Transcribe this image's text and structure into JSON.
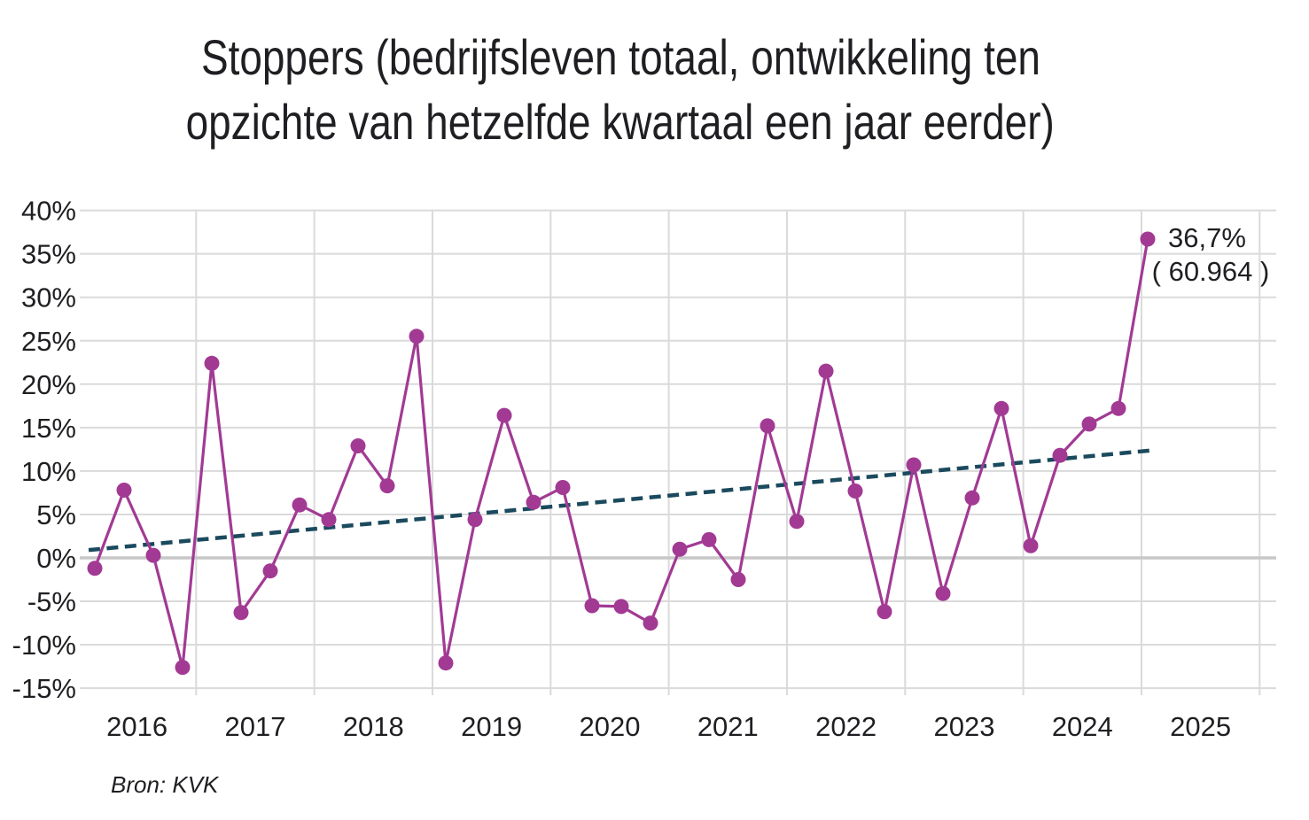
{
  "title": {
    "line1": "Stoppers (bedrijfsleven totaal, ontwikkeling ten",
    "line2": "opzichte van hetzelfde kwartaal een jaar eerder)"
  },
  "annotation": {
    "percent": "36,7%",
    "absolute": "( 60.964 )"
  },
  "source": {
    "label": "Bron: KVK"
  },
  "colors": {
    "series": "#A23A94",
    "trend": "#1B4A5E",
    "grid": "#DADADA",
    "zero_line": "#C7C7C7",
    "text": "#1F1F23",
    "background": "#FFFFFF"
  },
  "chart_data": {
    "type": "line",
    "title": "Stoppers (bedrijfsleven totaal, ontwikkeling ten opzichte van hetzelfde kwartaal een jaar eerder)",
    "source": "Bron: KVK",
    "grid": true,
    "legend_position": "none",
    "ylim": [
      -15,
      40
    ],
    "yticks_percent": [
      40,
      35,
      30,
      25,
      20,
      15,
      10,
      5,
      0,
      -5,
      -10,
      -15
    ],
    "ytick_labels": [
      "40%",
      "35%",
      "30%",
      "25%",
      "20%",
      "15%",
      "10%",
      "5%",
      "0%",
      "-5%",
      "-10%",
      "-15%"
    ],
    "x_year_labels": [
      "2016",
      "2017",
      "2018",
      "2019",
      "2020",
      "2021",
      "2022",
      "2023",
      "2024",
      "2025"
    ],
    "categories": [
      "2016 Q1",
      "2016 Q2",
      "2016 Q3",
      "2016 Q4",
      "2017 Q1",
      "2017 Q2",
      "2017 Q3",
      "2017 Q4",
      "2018 Q1",
      "2018 Q2",
      "2018 Q3",
      "2018 Q4",
      "2019 Q1",
      "2019 Q2",
      "2019 Q3",
      "2019 Q4",
      "2020 Q1",
      "2020 Q2",
      "2020 Q3",
      "2020 Q4",
      "2021 Q1",
      "2021 Q2",
      "2021 Q3",
      "2021 Q4",
      "2022 Q1",
      "2022 Q2",
      "2022 Q3",
      "2022 Q4",
      "2023 Q1",
      "2023 Q2",
      "2023 Q3",
      "2023 Q4",
      "2024 Q1",
      "2024 Q2",
      "2024 Q3",
      "2024 Q4",
      "2025 Q1"
    ],
    "series": [
      {
        "name": "Stoppers, ontwikkeling t.o.v. hetzelfde kwartaal een jaar eerder (%)",
        "type": "line-markers",
        "color": "#A23A94",
        "values": [
          -1.2,
          7.8,
          0.3,
          -12.6,
          22.4,
          -6.3,
          -1.5,
          6.1,
          4.4,
          12.9,
          8.3,
          25.5,
          -12.1,
          4.4,
          16.4,
          6.4,
          8.1,
          -5.5,
          -5.6,
          -7.5,
          1.0,
          2.1,
          -2.5,
          15.2,
          4.2,
          21.5,
          7.7,
          -6.2,
          10.7,
          -4.1,
          6.9,
          17.2,
          1.4,
          11.8,
          15.4,
          17.2,
          36.7
        ]
      },
      {
        "name": "Trendlijn (lineair)",
        "type": "dashed-trend",
        "color": "#1B4A5E",
        "endpoint_values_percent": [
          0.9,
          12.4
        ]
      }
    ],
    "last_point": {
      "category": "2025 Q1",
      "value_percent": 36.7,
      "value_label": "36,7%",
      "absolute_count_label": "( 60.964 )"
    }
  }
}
